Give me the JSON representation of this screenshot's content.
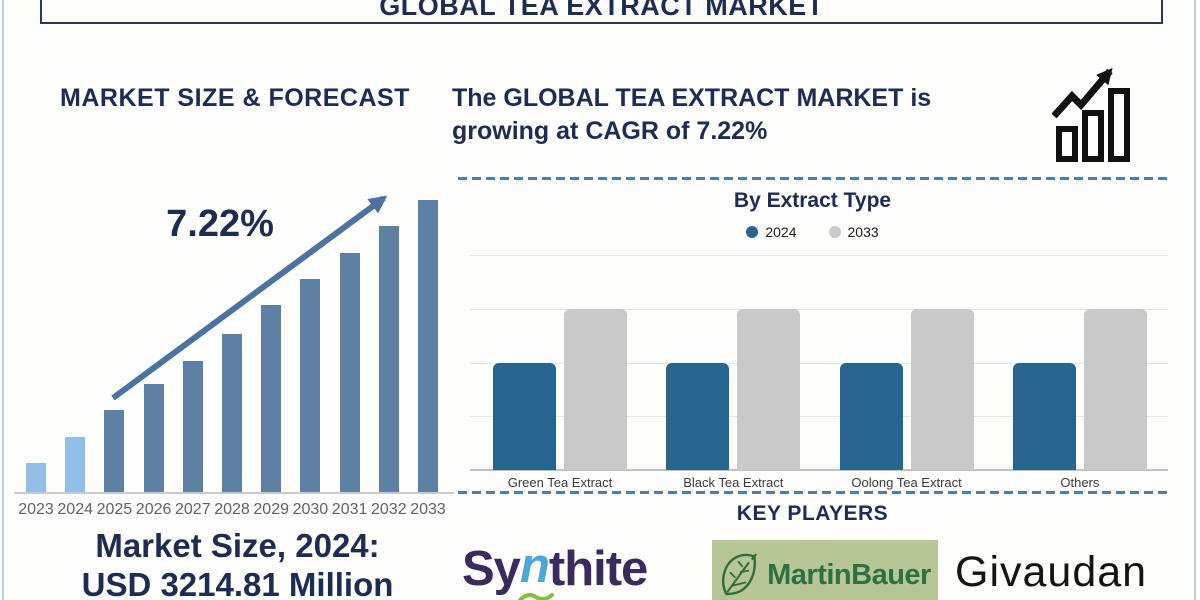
{
  "page": {
    "title": "GLOBAL TEA EXTRACT MARKET"
  },
  "left_panel": {
    "heading": "MARKET SIZE & FORECAST",
    "cagr_annotation": "7.22%",
    "market_size_line1": "Market Size, 2024:",
    "market_size_line2": "USD 3214.81 Million"
  },
  "right_panel": {
    "headline_line1": "The GLOBAL TEA EXTRACT MARKET is",
    "headline_line2": "growing at CAGR of 7.22%",
    "extract_section_title": "By Extract Type",
    "key_players_title": "KEY PLAYERS",
    "key_players": [
      {
        "name": "Synthite",
        "parts": {
          "prefix": "Sy",
          "accent": "n",
          "suffix": "thite"
        }
      },
      {
        "name": "MartinBauer"
      },
      {
        "name": "Givaudan"
      }
    ]
  },
  "colors": {
    "navy_text": "#1d2c52",
    "forecast_historical": "#92bfe8",
    "forecast_projection": "#5d81a4",
    "extract_2024": "#27648f",
    "extract_2033": "#c9c9c9",
    "trend_arrow": "#4a749f",
    "dashed_divider": "#4d7ea3",
    "outer_border": "#b9cfe2",
    "synthite_purple": "#3a2a5e",
    "synthite_blue": "#4aa7d8",
    "synthite_green": "#7dc242",
    "martinbauer_bg": "#b6c795",
    "martinbauer_green": "#2d7046",
    "givaudan_black": "#141414"
  },
  "chart_data": [
    {
      "id": "market-size-forecast",
      "type": "bar",
      "title": "MARKET SIZE & FORECAST",
      "categories": [
        "2023",
        "2024",
        "2025",
        "2026",
        "2027",
        "2028",
        "2029",
        "2030",
        "2031",
        "2032",
        "2033"
      ],
      "values": [
        1.0,
        1.9,
        2.8,
        3.7,
        4.5,
        5.4,
        6.4,
        7.3,
        8.2,
        9.1,
        10.0
      ],
      "value_note": "relative bar heights; no value axis shown",
      "known_point": {
        "year": "2024",
        "value": "USD 3214.81 Million"
      },
      "cagr": "7.22%",
      "annotations": [
        "7.22% label with upward trend arrow over bars"
      ],
      "color_rule": "2023-2024 light blue, 2025-2033 steel blue",
      "grid": false,
      "xlabel": "",
      "ylabel": ""
    },
    {
      "id": "by-extract-type",
      "type": "bar",
      "title": "By Extract Type",
      "categories": [
        "Green Tea Extract",
        "Black Tea Extract",
        "Oolong Tea Extract",
        "Others"
      ],
      "series": [
        {
          "name": "2024",
          "values": [
            2,
            2,
            2,
            2
          ],
          "color": "#27648f"
        },
        {
          "name": "2033",
          "values": [
            3,
            3,
            3,
            3
          ],
          "color": "#c9c9c9"
        }
      ],
      "ylim": [
        0,
        4
      ],
      "value_note": "relative bar heights; no value axis shown",
      "grid": true,
      "legend_position": "top",
      "xlabel": "",
      "ylabel": ""
    }
  ]
}
